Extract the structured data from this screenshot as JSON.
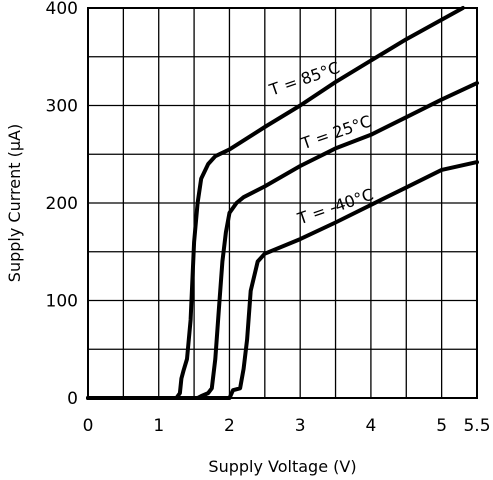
{
  "chart_data": {
    "type": "line",
    "xlabel": "Supply Voltage (V)",
    "ylabel": "Supply Current (μA)",
    "xlim": [
      0,
      5.5
    ],
    "ylim": [
      0,
      400
    ],
    "x_ticks": [
      {
        "value": 0,
        "label": "0"
      },
      {
        "value": 1,
        "label": "1"
      },
      {
        "value": 2,
        "label": "2"
      },
      {
        "value": 3,
        "label": "3"
      },
      {
        "value": 4,
        "label": "4"
      },
      {
        "value": 5,
        "label": "5"
      },
      {
        "value": 5.5,
        "label": "5.5"
      }
    ],
    "y_ticks": [
      {
        "value": 0,
        "label": "0"
      },
      {
        "value": 100,
        "label": "100"
      },
      {
        "value": 200,
        "label": "200"
      },
      {
        "value": 300,
        "label": "300"
      },
      {
        "value": 400,
        "label": "400"
      }
    ],
    "grid": {
      "x_step": 0.5,
      "y_step": 50
    },
    "series": [
      {
        "name": "T = 85°C",
        "label_anchor": [
          2.6,
          310
        ],
        "label_angle": -19,
        "points": [
          [
            0,
            0
          ],
          [
            1.25,
            0
          ],
          [
            1.3,
            5
          ],
          [
            1.32,
            20
          ],
          [
            1.35,
            28
          ],
          [
            1.4,
            40
          ],
          [
            1.45,
            80
          ],
          [
            1.5,
            160
          ],
          [
            1.55,
            200
          ],
          [
            1.6,
            225
          ],
          [
            1.7,
            240
          ],
          [
            1.8,
            248
          ],
          [
            2.0,
            255
          ],
          [
            2.5,
            278
          ],
          [
            3,
            300
          ],
          [
            3.5,
            324
          ],
          [
            4,
            346
          ],
          [
            4.5,
            368
          ],
          [
            5,
            388
          ],
          [
            5.3,
            400
          ]
        ]
      },
      {
        "name": "T = 25°C",
        "label_anchor": [
          3.05,
          255
        ],
        "label_angle": -19,
        "points": [
          [
            0,
            0
          ],
          [
            1.55,
            0
          ],
          [
            1.6,
            2
          ],
          [
            1.7,
            5
          ],
          [
            1.75,
            10
          ],
          [
            1.8,
            40
          ],
          [
            1.85,
            90
          ],
          [
            1.9,
            140
          ],
          [
            1.95,
            170
          ],
          [
            2.0,
            190
          ],
          [
            2.1,
            200
          ],
          [
            2.2,
            206
          ],
          [
            2.5,
            217
          ],
          [
            3,
            238
          ],
          [
            3.5,
            256
          ],
          [
            4,
            270
          ],
          [
            4.5,
            288
          ],
          [
            5,
            306
          ],
          [
            5.5,
            323
          ]
        ]
      },
      {
        "name": "T = -40°C",
        "label_anchor": [
          3.0,
          178
        ],
        "label_angle": -19,
        "points": [
          [
            0,
            0
          ],
          [
            2.0,
            0
          ],
          [
            2.05,
            8
          ],
          [
            2.15,
            10
          ],
          [
            2.2,
            30
          ],
          [
            2.25,
            60
          ],
          [
            2.3,
            110
          ],
          [
            2.4,
            140
          ],
          [
            2.5,
            148
          ],
          [
            3,
            163
          ],
          [
            3.5,
            180
          ],
          [
            4,
            198
          ],
          [
            4.5,
            216
          ],
          [
            5,
            234
          ],
          [
            5.5,
            242
          ]
        ]
      }
    ]
  }
}
